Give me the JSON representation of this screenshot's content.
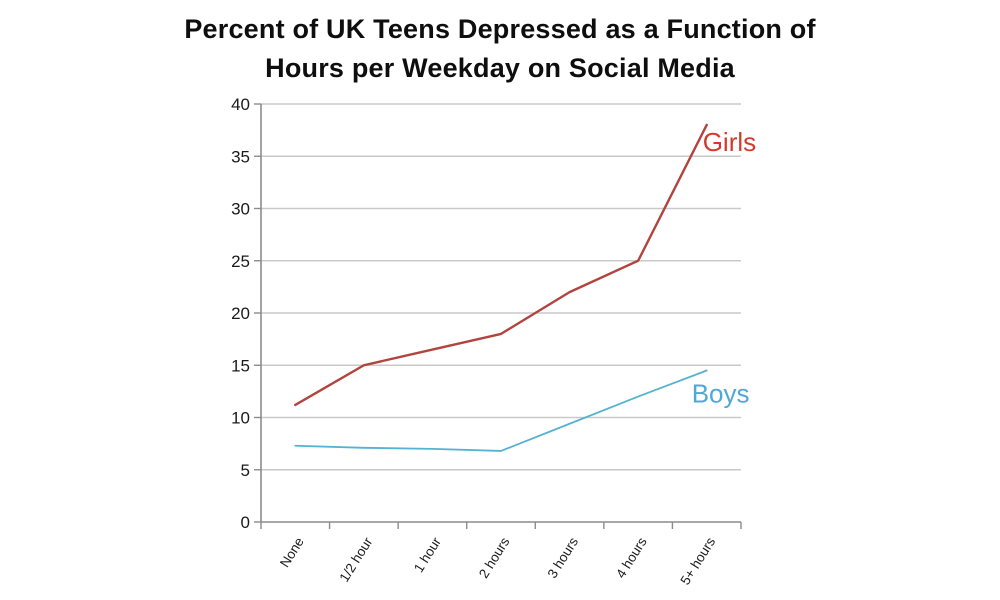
{
  "title": {
    "line1": "Percent of UK Teens Depressed as a Function of",
    "line2": "Hours per Weekday on Social Media"
  },
  "chart_data": {
    "type": "line",
    "title": "Percent of UK Teens Depressed as a Function of Hours per Weekday on Social Media",
    "categories": [
      "None",
      "1/2 hour",
      "1 hour",
      "2 hours",
      "3 hours",
      "4 hours",
      "5+ hours"
    ],
    "series": [
      {
        "name": "Girls",
        "color": "#b2443f",
        "label_color": "#d23b2c",
        "line_width": 2.4,
        "values": [
          11.2,
          15,
          16.5,
          18,
          22,
          25,
          38
        ]
      },
      {
        "name": "Boys",
        "color": "#55b2d1",
        "label_color": "#4fa8d8",
        "line_width": 1.8,
        "values": [
          7.3,
          7.1,
          7,
          6.8,
          9.4,
          12,
          14.5
        ]
      }
    ],
    "xlabel": "",
    "ylabel": "",
    "ylim": [
      0,
      40
    ],
    "ytick_step": 5,
    "grid": true,
    "legend": "series-end-labels",
    "colors": {
      "grid": "#c9c9c9",
      "axis": "#8c8c8c",
      "tick_label": "#1a1a1a",
      "title": "#0e0e0e"
    }
  }
}
